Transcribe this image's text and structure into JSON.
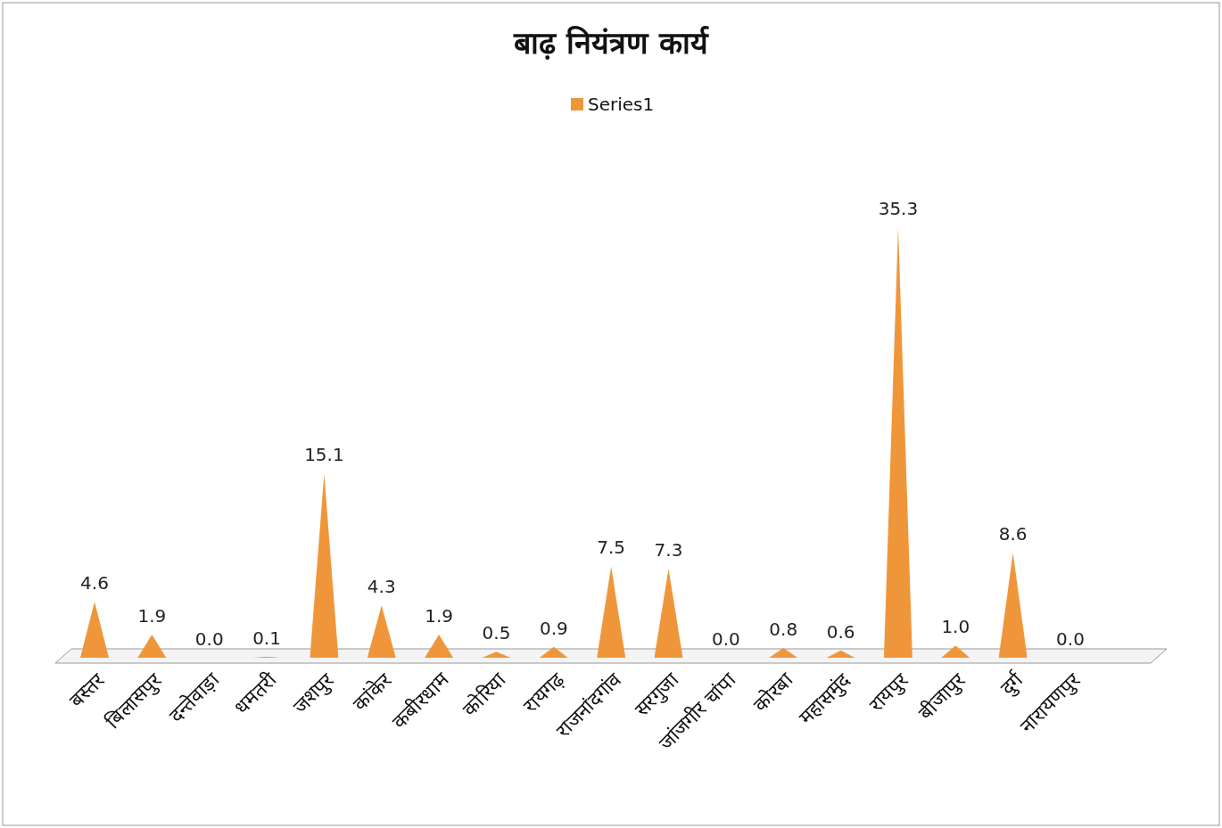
{
  "chart_data": {
    "type": "bar",
    "title": "बाढ़ नियंत्रण कार्य",
    "categories": [
      "बस्तर",
      "बिलासपुर",
      "दन्तेवाड़ा",
      "धमतरी",
      "जशपुर",
      "कांकेर",
      "कबीरधाम",
      "कोरिया",
      "रायगढ़",
      "राजनांदगांव",
      "सरगुजा",
      "जांजगीर चांपा",
      "कोरबा",
      "महासमुंद",
      "रायपुर",
      "बीजापुर",
      "दुर्ग",
      "नारायणपुर"
    ],
    "series": [
      {
        "name": "Series1",
        "color": "#f0963a",
        "values": [
          4.6,
          1.9,
          0.0,
          0.1,
          15.1,
          4.3,
          1.9,
          0.5,
          0.9,
          7.5,
          7.3,
          0.0,
          0.8,
          0.6,
          35.3,
          1.0,
          8.6,
          0.0
        ],
        "value_labels": [
          "4.6",
          "1.9",
          "0.0",
          "0.1",
          "15.1",
          "4.3",
          "1.9",
          "0.5",
          "0.9",
          "7.5",
          "7.3",
          "0.0",
          "0.8",
          "0.6",
          "35.3",
          "1.0",
          "8.6",
          "0.0"
        ]
      }
    ],
    "legend": "top"
  }
}
